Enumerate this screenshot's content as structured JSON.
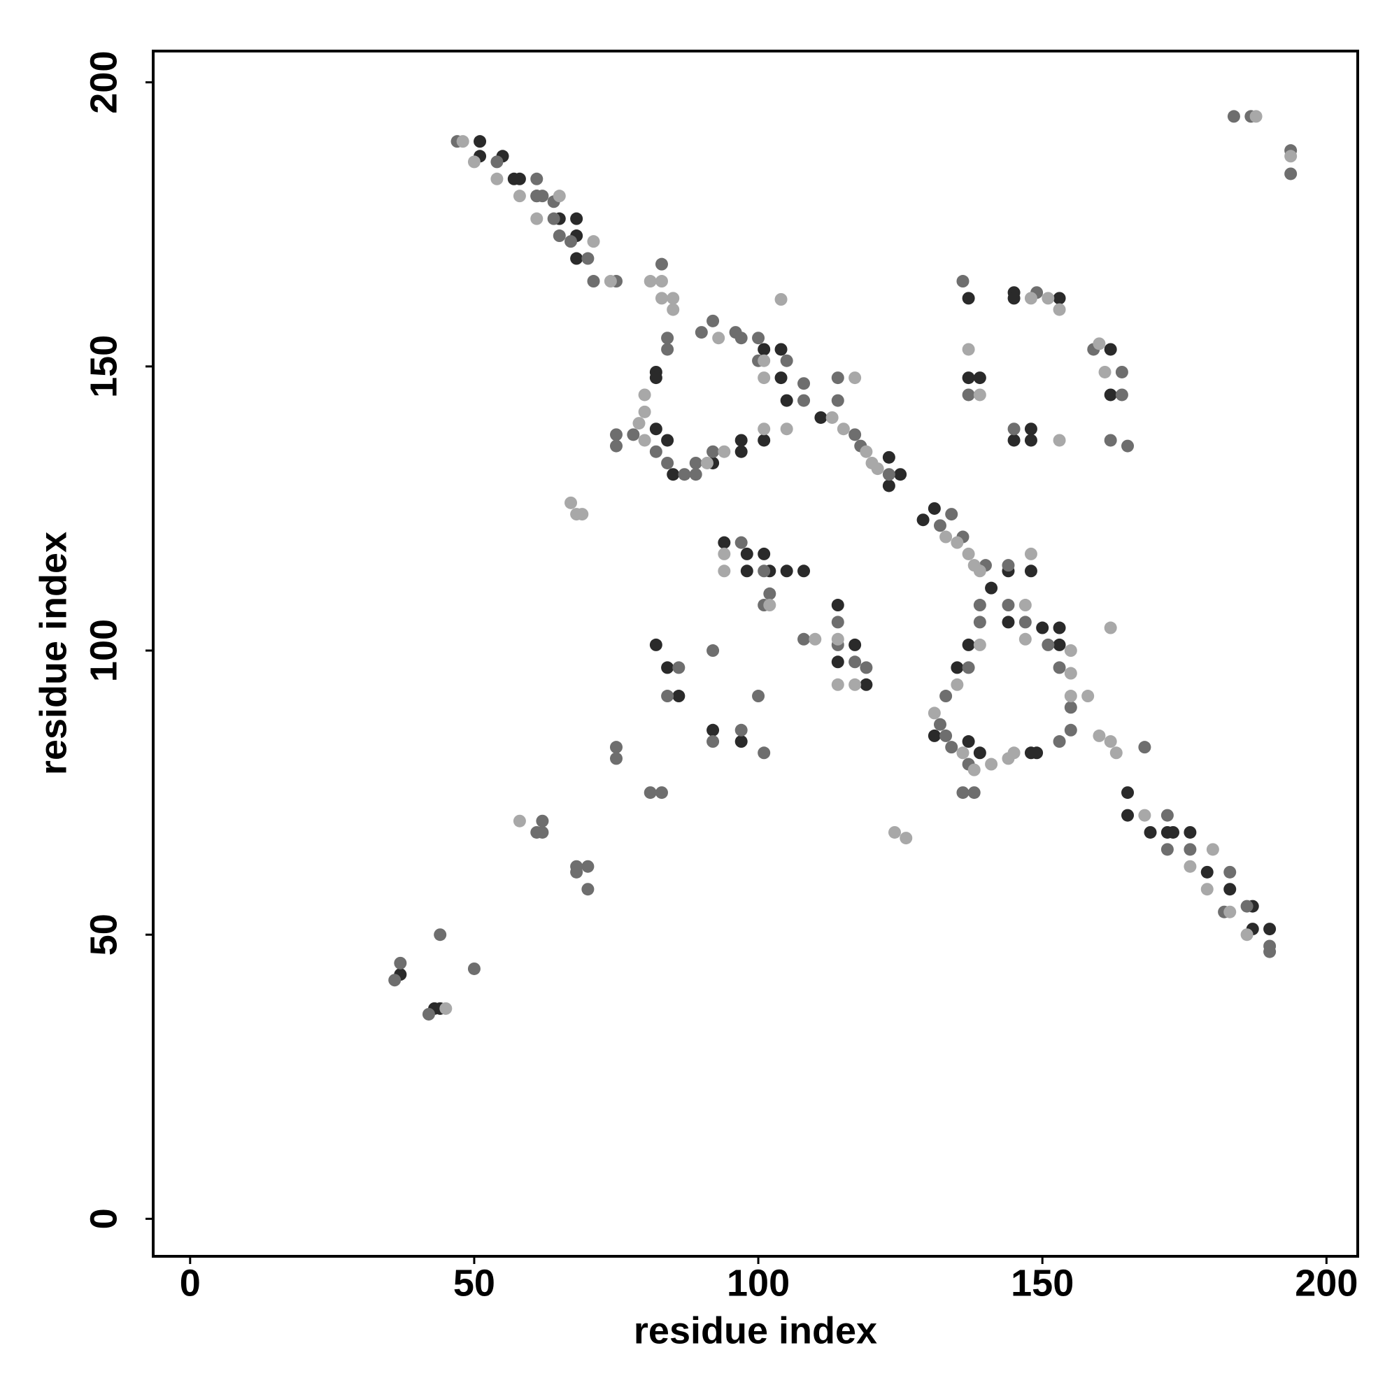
{
  "chart_data": {
    "type": "scatter",
    "x_label": "residue index",
    "y_label": "residue index",
    "xlim": [
      -6.5,
      205.5
    ],
    "ylim": [
      -6.6,
      205.5
    ],
    "xticks": [
      0,
      50,
      100,
      150,
      200
    ],
    "yticks": [
      0,
      50,
      100,
      150,
      200
    ],
    "grid": false,
    "series": [
      {
        "color": "#2a2a2a",
        "x": [
          51,
          51,
          55,
          57,
          58,
          61,
          65,
          68,
          68,
          68,
          82,
          82,
          82,
          84,
          85,
          92,
          97,
          97,
          101,
          101,
          104,
          104,
          105,
          111,
          123,
          125,
          123,
          129,
          131,
          141,
          144,
          148,
          94,
          98,
          98,
          101,
          102,
          105,
          108,
          114,
          117,
          114,
          119,
          82,
          84,
          86,
          92,
          97,
          135,
          137,
          131,
          137,
          139,
          148,
          149,
          150,
          153,
          153,
          144,
          137,
          145,
          145,
          153,
          137,
          139,
          145,
          148,
          148,
          162,
          162,
          165,
          165,
          169,
          172,
          173,
          176,
          179,
          183,
          187,
          187,
          190,
          37,
          43,
          44
        ],
        "y": [
          189.6,
          187,
          187,
          183,
          183,
          180,
          176,
          176,
          173,
          169,
          149,
          148,
          139,
          137,
          131,
          133,
          135,
          137,
          137,
          153,
          153,
          148,
          144,
          141,
          134,
          131,
          129,
          123,
          125,
          111,
          114,
          114,
          119,
          117,
          114,
          117,
          114,
          114,
          114,
          108,
          101,
          98,
          94,
          101,
          97,
          92,
          86,
          84,
          97,
          101,
          85,
          84,
          82,
          82,
          82,
          104,
          104,
          101,
          105,
          162,
          163,
          162,
          162,
          148,
          148,
          137,
          139,
          137,
          153,
          145,
          75,
          71,
          68,
          68,
          68,
          68,
          61,
          58,
          55,
          51,
          51,
          43,
          37,
          37
        ]
      },
      {
        "color": "#6e6e6e",
        "x": [
          47,
          54,
          61,
          61,
          62,
          64,
          64,
          65,
          67,
          70,
          71,
          75,
          183.7,
          186.7,
          193.7,
          193.7,
          83,
          84,
          84,
          78,
          82,
          84,
          87,
          89,
          89,
          92,
          75,
          75,
          90,
          92,
          96,
          97,
          100,
          105,
          108,
          108,
          100,
          114,
          114,
          117,
          118,
          123,
          132,
          134,
          136,
          140,
          144,
          139,
          139,
          97,
          101,
          102,
          101,
          108,
          114,
          114,
          117,
          119,
          86,
          84,
          92,
          100,
          92,
          97,
          101,
          81,
          83,
          75,
          75,
          137,
          133,
          132,
          133,
          134,
          137,
          136,
          138,
          147,
          151,
          153,
          155,
          155,
          153,
          168,
          144,
          136,
          149,
          159,
          164,
          137,
          164,
          145,
          162,
          165,
          172,
          172,
          176,
          183,
          182,
          186,
          190,
          190,
          61,
          62,
          62,
          68,
          70,
          68,
          70,
          36,
          37,
          44,
          50,
          42
        ],
        "y": [
          189.6,
          186,
          183,
          180,
          180,
          179,
          176,
          173,
          172,
          169,
          165,
          165,
          194,
          194,
          188,
          183.9,
          168,
          155,
          153,
          138,
          135,
          133,
          131,
          133,
          131,
          135,
          138,
          136,
          156,
          158,
          156,
          155,
          155,
          151,
          147,
          144,
          151,
          148,
          144,
          138,
          136,
          131,
          122,
          124,
          120,
          115,
          115,
          108,
          105,
          119,
          114,
          110,
          108,
          102,
          105,
          101,
          98,
          97,
          97,
          92,
          100,
          92,
          84,
          86,
          82,
          75,
          75,
          83,
          81,
          97,
          92,
          87,
          85,
          83,
          80,
          75,
          75,
          105,
          101,
          97,
          90,
          86,
          84,
          83,
          108,
          165,
          163,
          153,
          149,
          145,
          145,
          139,
          137,
          136,
          71,
          65,
          65,
          61,
          54,
          55,
          48,
          47,
          68,
          70,
          68,
          62,
          62,
          61,
          58,
          42,
          45,
          50,
          44,
          36
        ]
      },
      {
        "color": "#a8a8a8",
        "x": [
          48,
          50,
          54,
          58,
          61,
          65,
          71,
          74,
          187.6,
          193.7,
          81,
          83,
          83,
          85,
          85,
          80,
          80,
          79,
          80,
          91,
          94,
          101,
          105,
          93,
          101,
          101,
          104,
          117,
          113,
          115,
          119,
          120,
          121,
          133,
          135,
          137,
          138,
          139,
          148,
          94,
          94,
          102,
          110,
          114,
          114,
          117,
          67,
          68,
          69,
          139,
          135,
          131,
          136,
          138,
          141,
          144,
          145,
          147,
          155,
          155,
          155,
          158,
          160,
          162,
          163,
          162,
          147,
          148,
          151,
          153,
          137,
          139,
          153,
          160,
          161,
          168,
          176,
          180,
          179,
          183,
          186,
          58,
          124,
          126,
          45
        ],
        "y": [
          189.6,
          186,
          183,
          180,
          176,
          180,
          172,
          165,
          194,
          187,
          165,
          165,
          162,
          162,
          160,
          145,
          142,
          140,
          137,
          133,
          135,
          139,
          139,
          155,
          151,
          148,
          161.8,
          148,
          141,
          139,
          135,
          133,
          132,
          120,
          119,
          117,
          115,
          114,
          117,
          117,
          114,
          108,
          102,
          102,
          94,
          94,
          126,
          124,
          124,
          101,
          94,
          89,
          82,
          79,
          80,
          81,
          82,
          102,
          100,
          96,
          92,
          92,
          85,
          84,
          82,
          104,
          108,
          162,
          162,
          160,
          153,
          145,
          137,
          154,
          149,
          71,
          62,
          65,
          58,
          54,
          50,
          70,
          68,
          67,
          37
        ]
      }
    ]
  }
}
